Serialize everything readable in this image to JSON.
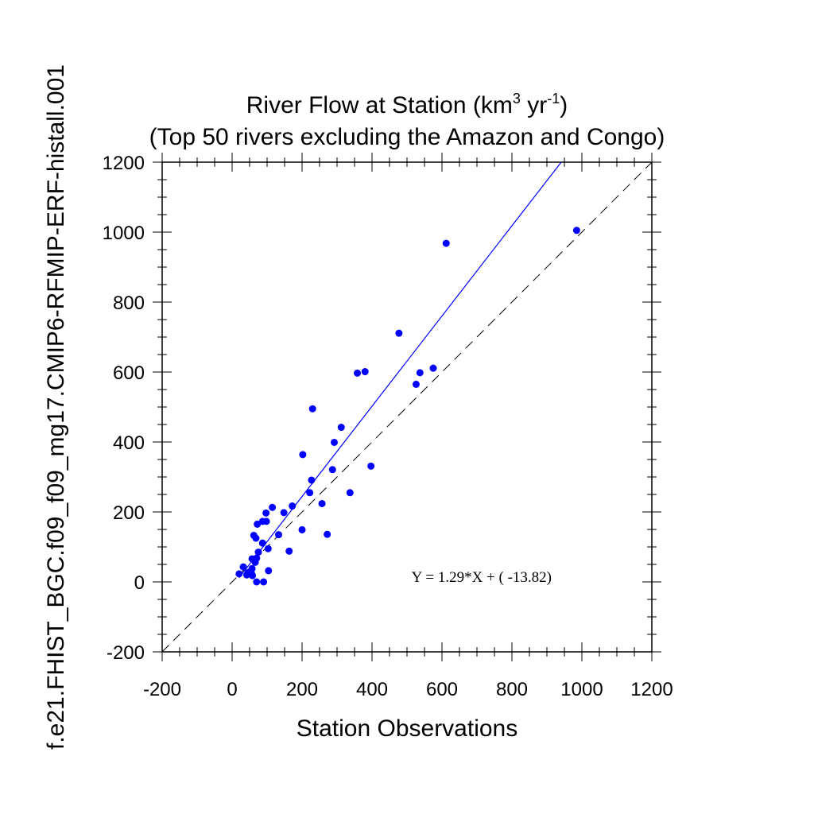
{
  "chart_data": {
    "type": "scatter",
    "title_line1": {
      "main": "River Flow at Station (km",
      "sup1": "3",
      "mid": " yr",
      "sup2": "-1",
      "end": ")"
    },
    "title_line2": "(Top 50 rivers excluding the Amazon and Congo)",
    "xlabel": "Station Observations",
    "ylabel": "f.e21.FHIST_BGC.f09_f09_mg17.CMIP6-RFMIP-ERF-histall.001",
    "xlim": [
      -200,
      1200
    ],
    "ylim": [
      -200,
      1200
    ],
    "xticks": [
      "-200",
      "0",
      "200",
      "400",
      "600",
      "800",
      "1000",
      "1200"
    ],
    "yticks": [
      "-200",
      "0",
      "200",
      "400",
      "600",
      "800",
      "1000",
      "1200"
    ],
    "xtick_values": [
      -200,
      0,
      200,
      400,
      600,
      800,
      1000,
      1200
    ],
    "ytick_values": [
      -200,
      0,
      200,
      400,
      600,
      800,
      1000,
      1200
    ],
    "minor_tick_step": 50,
    "grid": false,
    "marker_color": "#0000ff",
    "fit_line_color": "#0000ff",
    "reference_line_color": "#000000",
    "regression": {
      "slope": 1.29,
      "intercept": -13.82
    },
    "equation_label": "Y =  1.29*X + (  -13.82)",
    "equation_position": [
      540,
      0
    ],
    "points": [
      [
        985,
        1005
      ],
      [
        612,
        968
      ],
      [
        477,
        711
      ],
      [
        575,
        611
      ],
      [
        537,
        598
      ],
      [
        526,
        565
      ],
      [
        380,
        601
      ],
      [
        358,
        597
      ],
      [
        230,
        495
      ],
      [
        312,
        442
      ],
      [
        292,
        399
      ],
      [
        202,
        364
      ],
      [
        397,
        331
      ],
      [
        287,
        321
      ],
      [
        227,
        291
      ],
      [
        222,
        255
      ],
      [
        337,
        255
      ],
      [
        257,
        224
      ],
      [
        115,
        213
      ],
      [
        172,
        217
      ],
      [
        148,
        198
      ],
      [
        97,
        197
      ],
      [
        87,
        173
      ],
      [
        98,
        173
      ],
      [
        72,
        165
      ],
      [
        200,
        149
      ],
      [
        62,
        133
      ],
      [
        68,
        125
      ],
      [
        133,
        135
      ],
      [
        272,
        136
      ],
      [
        87,
        111
      ],
      [
        103,
        95
      ],
      [
        163,
        88
      ],
      [
        75,
        85
      ],
      [
        70,
        68
      ],
      [
        57,
        66
      ],
      [
        66,
        56
      ],
      [
        32,
        43
      ],
      [
        57,
        38
      ],
      [
        46,
        27
      ],
      [
        20,
        23
      ],
      [
        55,
        25
      ],
      [
        42,
        20
      ],
      [
        58,
        18
      ],
      [
        104,
        32
      ],
      [
        70,
        0
      ],
      [
        90,
        0
      ]
    ]
  }
}
